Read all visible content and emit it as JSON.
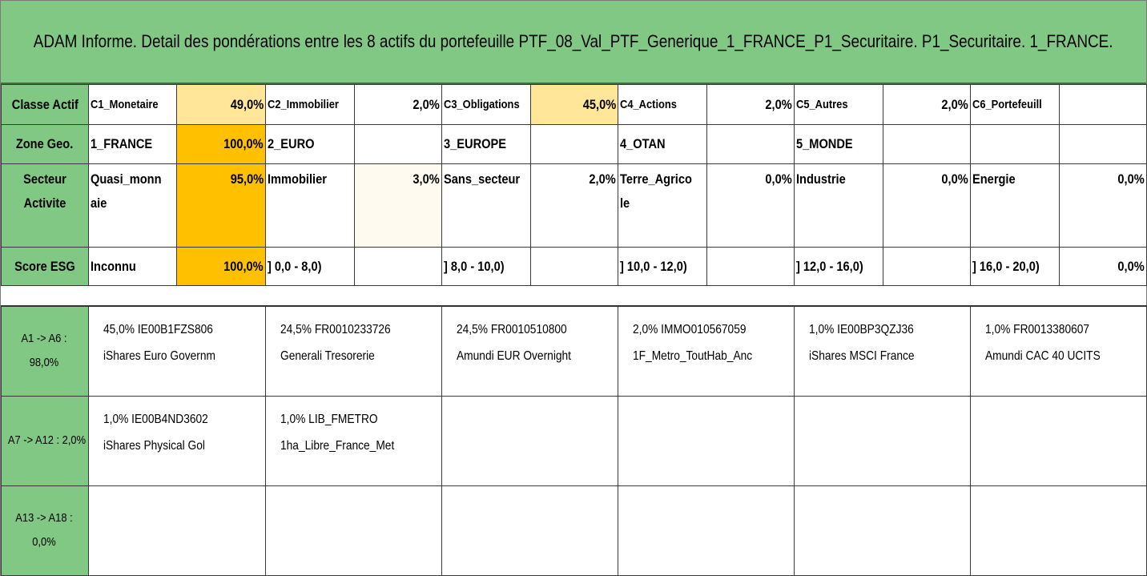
{
  "title": "ADAM Informe. Detail des pondérations entre les 8 actifs du portefeuille PTF_08_Val_PTF_Generique_1_FRANCE_P1_Securitaire. P1_Securitaire. 1_FRANCE.",
  "rows": {
    "classe": {
      "header": "Classe Actif",
      "cells": [
        {
          "label": "C1_Monetaire",
          "value": "49,0%"
        },
        {
          "label": "C2_Immobilier",
          "value": "2,0%"
        },
        {
          "label": "C3_Obligations",
          "value": "45,0%"
        },
        {
          "label": "C4_Actions",
          "value": "2,0%"
        },
        {
          "label": "C5_Autres",
          "value": "2,0%"
        },
        {
          "label": "C6_Portefeuill",
          "value": ""
        }
      ]
    },
    "zone": {
      "header": "Zone Geo.",
      "cells": [
        {
          "label": "1_FRANCE",
          "value": "100,0%"
        },
        {
          "label": "2_EURO",
          "value": ""
        },
        {
          "label": "3_EUROPE",
          "value": ""
        },
        {
          "label": "4_OTAN",
          "value": ""
        },
        {
          "label": "5_MONDE",
          "value": ""
        },
        {
          "label": "",
          "value": ""
        }
      ]
    },
    "secteur": {
      "header": "Secteur Activite",
      "cells": [
        {
          "label": "Quasi_monnaie",
          "value": "95,0%"
        },
        {
          "label": "Immobilier",
          "value": "3,0%"
        },
        {
          "label": "Sans_secteur",
          "value": "2,0%"
        },
        {
          "label": "Terre_Agricole",
          "value": "0,0%"
        },
        {
          "label": "Industrie",
          "value": "0,0%"
        },
        {
          "label": "Energie",
          "value": "0,0%"
        }
      ]
    },
    "esg": {
      "header": "Score ESG",
      "cells": [
        {
          "label": "Inconnu",
          "value": "100,0%"
        },
        {
          "label": "] 0,0 - 8,0)",
          "value": ""
        },
        {
          "label": "] 8,0 - 10,0)",
          "value": ""
        },
        {
          "label": "] 10,0 - 12,0)",
          "value": ""
        },
        {
          "label": "] 12,0 - 16,0)",
          "value": ""
        },
        {
          "label": "] 16,0 - 20,0)",
          "value": "0,0%"
        }
      ]
    }
  },
  "assets": {
    "groups": [
      {
        "label": "A1 -> A6 : 98,0%",
        "items": [
          {
            "line1": "45,0% IE00B1FZS806",
            "line2": "iShares Euro Governm"
          },
          {
            "line1": "24,5% FR0010233726",
            "line2": "Generali Tresorerie"
          },
          {
            "line1": "24,5% FR0010510800",
            "line2": "Amundi EUR Overnight"
          },
          {
            "line1": "2,0% IMMO010567059",
            "line2": "1F_Metro_ToutHab_Anc"
          },
          {
            "line1": "1,0% IE00BP3QZJ36",
            "line2": "iShares MSCI France"
          },
          {
            "line1": "1,0% FR0013380607",
            "line2": "Amundi CAC 40 UCITS"
          }
        ]
      },
      {
        "label": "A7 -> A12 : 2,0%",
        "items": [
          {
            "line1": "1,0% IE00B4ND3602",
            "line2": "iShares Physical Gol"
          },
          {
            "line1": "1,0% LIB_FMETRO",
            "line2": "1ha_Libre_France_Met"
          }
        ]
      },
      {
        "label": "A13 -> A18 : 0,0%",
        "items": []
      }
    ]
  },
  "colors": {
    "header_green": "#80c883",
    "highlight_strong": "#ffc000",
    "highlight_light": "#ffe699"
  }
}
